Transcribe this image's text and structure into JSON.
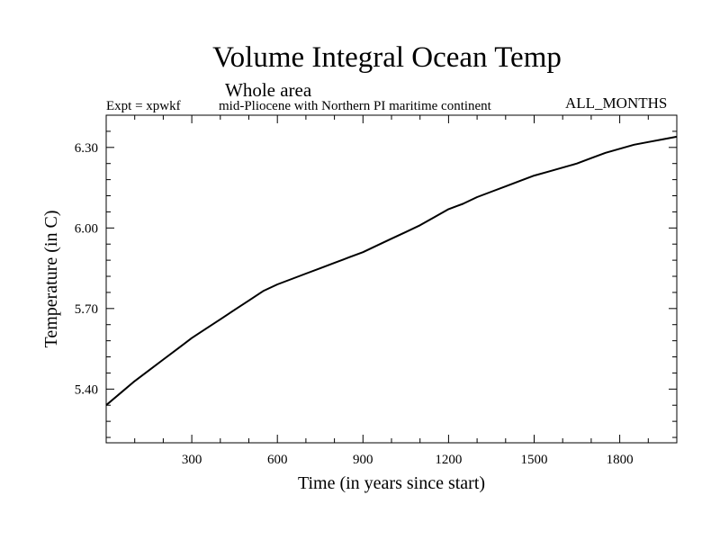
{
  "header": {
    "title": "Volume Integral Ocean Temp",
    "subtitle": "Whole area",
    "expt_label": "Expt = xpwkf",
    "description": "mid-Pliocene with Northern PI maritime continent",
    "months": "ALL_MONTHS"
  },
  "chart_data": {
    "type": "line",
    "title": "Volume Integral Ocean Temp",
    "subtitle": "Whole area",
    "xlabel": "Time (in years since start)",
    "ylabel": "Temperature (in C)",
    "xlim": [
      0,
      2000
    ],
    "ylim": [
      5.2,
      6.42
    ],
    "x_ticks": [
      300,
      600,
      900,
      1200,
      1500,
      1800
    ],
    "x_tick_labels": [
      "300",
      "600",
      "900",
      "1200",
      "1500",
      "1800"
    ],
    "y_ticks": [
      5.4,
      5.7,
      6.0,
      6.3
    ],
    "y_tick_labels": [
      "5.40",
      "5.70",
      "6.00",
      "6.30"
    ],
    "grid": false,
    "series": [
      {
        "name": "xpwkf",
        "color": "#000000",
        "x": [
          0,
          50,
          100,
          150,
          200,
          250,
          300,
          350,
          400,
          450,
          500,
          550,
          600,
          650,
          700,
          750,
          800,
          850,
          900,
          950,
          1000,
          1050,
          1100,
          1150,
          1200,
          1250,
          1300,
          1350,
          1400,
          1450,
          1500,
          1550,
          1600,
          1650,
          1700,
          1750,
          1800,
          1850,
          1900,
          1950,
          2000
        ],
        "values": [
          5.34,
          5.385,
          5.43,
          5.47,
          5.51,
          5.55,
          5.59,
          5.625,
          5.66,
          5.695,
          5.73,
          5.765,
          5.79,
          5.81,
          5.83,
          5.85,
          5.87,
          5.89,
          5.91,
          5.935,
          5.96,
          5.985,
          6.01,
          6.04,
          6.07,
          6.09,
          6.115,
          6.135,
          6.155,
          6.175,
          6.195,
          6.21,
          6.225,
          6.24,
          6.26,
          6.28,
          6.295,
          6.31,
          6.32,
          6.33,
          6.34
        ]
      }
    ]
  }
}
